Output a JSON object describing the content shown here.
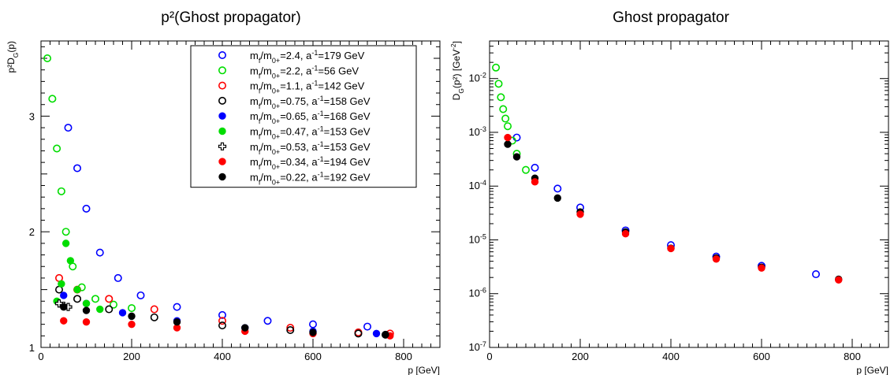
{
  "chart_data": [
    {
      "type": "scatter",
      "title": "p²(Ghost propagator)",
      "xlabel": "p [GeV]",
      "ylabel": "p²D_G(p)",
      "xlim": [
        0,
        880
      ],
      "ylim": [
        1,
        3.65
      ],
      "yscale": "linear",
      "xticks": [
        0,
        200,
        400,
        600,
        800
      ],
      "yticks": [
        1,
        2,
        3
      ],
      "legend_position": "top-right",
      "series": [
        {
          "name": "m_f/m_0+=2.4, a^-1=179 GeV",
          "marker": "open-circle",
          "color": "#0000ff",
          "x": [
            60,
            80,
            100,
            130,
            170,
            220,
            300,
            400,
            500,
            600,
            720
          ],
          "y": [
            2.9,
            2.55,
            2.2,
            1.82,
            1.6,
            1.45,
            1.35,
            1.28,
            1.23,
            1.2,
            1.18
          ]
        },
        {
          "name": "m_f/m_0+=2.2, a^-1=56 GeV",
          "marker": "open-circle",
          "color": "#00dd00",
          "x": [
            14,
            25,
            35,
            45,
            55,
            70,
            90,
            120,
            160,
            200
          ],
          "y": [
            3.5,
            3.15,
            2.72,
            2.35,
            2.0,
            1.7,
            1.52,
            1.42,
            1.37,
            1.34
          ]
        },
        {
          "name": "m_f/m_0+=1.1, a^-1=142 GeV",
          "marker": "open-circle",
          "color": "#ff0000",
          "x": [
            40,
            80,
            150,
            250,
            400,
            550,
            700,
            770
          ],
          "y": [
            1.6,
            1.5,
            1.42,
            1.33,
            1.23,
            1.17,
            1.13,
            1.12
          ]
        },
        {
          "name": "m_f/m_0+=0.75, a^-1=158 GeV",
          "marker": "open-circle",
          "color": "#000000",
          "x": [
            40,
            80,
            150,
            250,
            400,
            550,
            700,
            760
          ],
          "y": [
            1.5,
            1.42,
            1.33,
            1.26,
            1.19,
            1.15,
            1.12,
            1.11
          ]
        },
        {
          "name": "m_f/m_0+=0.65, a^-1=168 GeV",
          "marker": "filled-circle",
          "color": "#0000ff",
          "x": [
            50,
            100,
            180,
            300,
            450,
            600,
            740
          ],
          "y": [
            1.45,
            1.38,
            1.3,
            1.23,
            1.17,
            1.14,
            1.12
          ]
        },
        {
          "name": "m_f/m_0+=0.47, a^-1=153 GeV",
          "marker": "filled-circle",
          "color": "#00dd00",
          "x": [
            35,
            45,
            55,
            65,
            80,
            100,
            130
          ],
          "y": [
            1.4,
            1.55,
            1.9,
            1.75,
            1.5,
            1.38,
            1.33
          ]
        },
        {
          "name": "m_f/m_0+=0.53, a^-1=153 GeV",
          "marker": "open-cross",
          "color": "#000000",
          "x": [
            40,
            50,
            60
          ],
          "y": [
            1.38,
            1.36,
            1.35
          ]
        },
        {
          "name": "m_f/m_0+=0.34, a^-1=194 GeV",
          "marker": "filled-circle",
          "color": "#ff0000",
          "x": [
            50,
            100,
            200,
            300,
            450,
            600,
            770
          ],
          "y": [
            1.23,
            1.22,
            1.2,
            1.17,
            1.14,
            1.12,
            1.1
          ]
        },
        {
          "name": "m_f/m_0+=0.22, a^-1=192 GeV",
          "marker": "filled-circle",
          "color": "#000000",
          "x": [
            50,
            100,
            200,
            300,
            450,
            600,
            760
          ],
          "y": [
            1.35,
            1.32,
            1.27,
            1.22,
            1.17,
            1.13,
            1.11
          ]
        }
      ]
    },
    {
      "type": "scatter",
      "title": "Ghost propagator",
      "xlabel": "p [GeV]",
      "ylabel": "D_G(p²) [GeV^-2]",
      "xlim": [
        0,
        880
      ],
      "ylim": [
        1e-07,
        0.05
      ],
      "yscale": "log",
      "xticks": [
        0,
        200,
        400,
        600,
        800
      ],
      "ytick_labels": [
        "10^-7",
        "10^-6",
        "10^-5",
        "10^-4",
        "10^-3",
        "10^-2"
      ],
      "series": [
        {
          "name": "m_f/m_0+=2.4, a^-1=179 GeV",
          "marker": "open-circle",
          "color": "#0000ff",
          "x": [
            60,
            100,
            150,
            200,
            300,
            400,
            500,
            600,
            720
          ],
          "y": [
            0.0008,
            0.00022,
            9e-05,
            4e-05,
            1.5e-05,
            8e-06,
            4.9e-06,
            3.3e-06,
            2.3e-06
          ]
        },
        {
          "name": "m_f/m_0+=2.2, a^-1=56 GeV",
          "marker": "open-circle",
          "color": "#00dd00",
          "x": [
            14,
            20,
            25,
            30,
            35,
            40,
            50,
            60,
            80
          ],
          "y": [
            0.016,
            0.008,
            0.0045,
            0.0027,
            0.0018,
            0.0013,
            0.0007,
            0.0004,
            0.0002
          ]
        },
        {
          "name": "m_f/m_0+=0.22, a^-1=192 GeV",
          "marker": "filled-circle",
          "color": "#000000",
          "x": [
            40,
            60,
            100,
            150,
            200,
            300,
            400,
            500,
            600,
            770
          ],
          "y": [
            0.0006,
            0.00035,
            0.00014,
            6e-05,
            3.3e-05,
            1.4e-05,
            7e-06,
            4.6e-06,
            3.1e-06,
            1.85e-06
          ]
        },
        {
          "name": "m_f/m_0+=0.34, a^-1=194 GeV",
          "marker": "filled-circle",
          "color": "#ff0000",
          "x": [
            40,
            100,
            200,
            300,
            400,
            500,
            600,
            770
          ],
          "y": [
            0.0008,
            0.00012,
            3e-05,
            1.3e-05,
            6.9e-06,
            4.4e-06,
            3e-06,
            1.8e-06
          ]
        }
      ]
    }
  ]
}
